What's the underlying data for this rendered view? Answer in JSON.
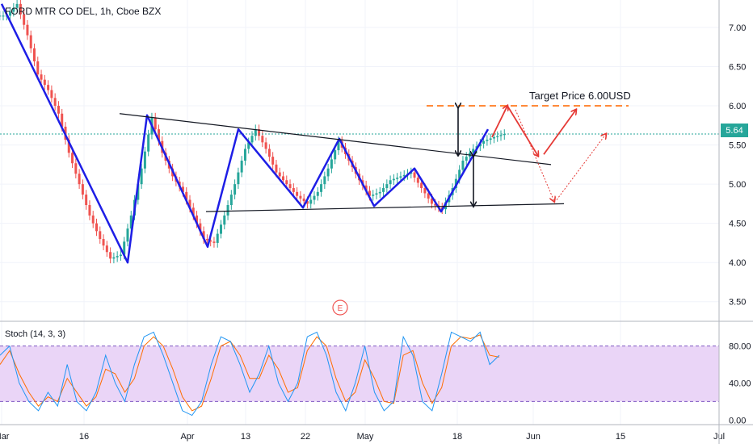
{
  "chart_data": {
    "type": "candlestick",
    "title": "FORD MTR CO DEL, 1h, Cboe BZX",
    "price_axis": {
      "ylim": [
        3.25,
        7.35
      ],
      "ticks": [
        "7.00",
        "6.50",
        "6.00",
        "5.50",
        "5.00",
        "4.50",
        "4.00",
        "3.50"
      ],
      "tick_values": [
        7.0,
        6.5,
        6.0,
        5.5,
        5.0,
        4.5,
        4.0,
        3.5
      ]
    },
    "last_price": {
      "value": 5.64,
      "label": "5.64"
    },
    "x_axis": {
      "ticks": [
        "Mar",
        "16",
        "Apr",
        "13",
        "22",
        "May",
        "18",
        "Jun",
        "15",
        "Jul"
      ]
    },
    "price_series": {
      "name": "FORD MTR CO DEL",
      "approx_closes_start_to_end": [
        7.15,
        7.3,
        6.9,
        6.4,
        6.2,
        5.9,
        5.4,
        5.0,
        4.6,
        4.3,
        4.05,
        4.1,
        4.6,
        5.2,
        5.85,
        5.4,
        5.1,
        4.9,
        4.6,
        4.3,
        4.25,
        4.6,
        5.0,
        5.45,
        5.7,
        5.45,
        5.15,
        5.0,
        4.85,
        4.75,
        4.9,
        5.2,
        5.55,
        5.3,
        5.05,
        4.85,
        4.9,
        5.05,
        5.1,
        5.15,
        4.95,
        4.75,
        4.68,
        4.95,
        5.3,
        5.45,
        5.55,
        5.6,
        5.64
      ]
    },
    "annotations": {
      "target_label": "Target Price 6.00USD",
      "event_marker": "E",
      "target_price": 6.0,
      "zigzag": [
        [
          7.3,
          0
        ],
        [
          4.0,
          1
        ],
        [
          5.88,
          2
        ],
        [
          4.2,
          3
        ],
        [
          5.7,
          4
        ],
        [
          4.7,
          5
        ],
        [
          5.58,
          6
        ],
        [
          4.72,
          7
        ],
        [
          5.2,
          8
        ],
        [
          4.65,
          9
        ],
        [
          5.7,
          10
        ]
      ],
      "upper_trendline": [
        5.9,
        5.25
      ],
      "lower_trendline": [
        4.65,
        4.75
      ]
    },
    "stochastic": {
      "label": "Stoch (14, 3, 3)",
      "ylim": [
        -5,
        105
      ],
      "ticks": [
        "80.00",
        "40.00",
        "0.00"
      ],
      "tick_values": [
        80,
        40,
        0
      ],
      "band": [
        20,
        80
      ],
      "k_approx": [
        70,
        80,
        40,
        20,
        10,
        30,
        15,
        60,
        20,
        10,
        30,
        70,
        40,
        20,
        60,
        90,
        95,
        70,
        40,
        10,
        5,
        20,
        60,
        90,
        85,
        60,
        30,
        50,
        80,
        40,
        20,
        40,
        90,
        95,
        70,
        30,
        10,
        40,
        80,
        30,
        10,
        20,
        90,
        70,
        20,
        10,
        50,
        95,
        90,
        85,
        95,
        60,
        70
      ],
      "d_approx": [
        60,
        75,
        50,
        30,
        15,
        25,
        20,
        45,
        30,
        15,
        25,
        55,
        50,
        30,
        45,
        80,
        90,
        80,
        55,
        25,
        10,
        15,
        45,
        80,
        85,
        70,
        45,
        45,
        70,
        55,
        30,
        35,
        75,
        90,
        80,
        45,
        20,
        30,
        65,
        45,
        20,
        18,
        70,
        75,
        40,
        18,
        35,
        80,
        90,
        88,
        92,
        70,
        68
      ],
      "colors": {
        "k": "#2196f3",
        "d": "#ff6d00",
        "band": "#e1bee7"
      }
    },
    "colors": {
      "up": "#26a69a",
      "down": "#ef5350",
      "zigzag": "#1e1ee6",
      "target_line": "#ff7f27",
      "forecast": "#e53935",
      "last_price": "#26a69a"
    }
  }
}
